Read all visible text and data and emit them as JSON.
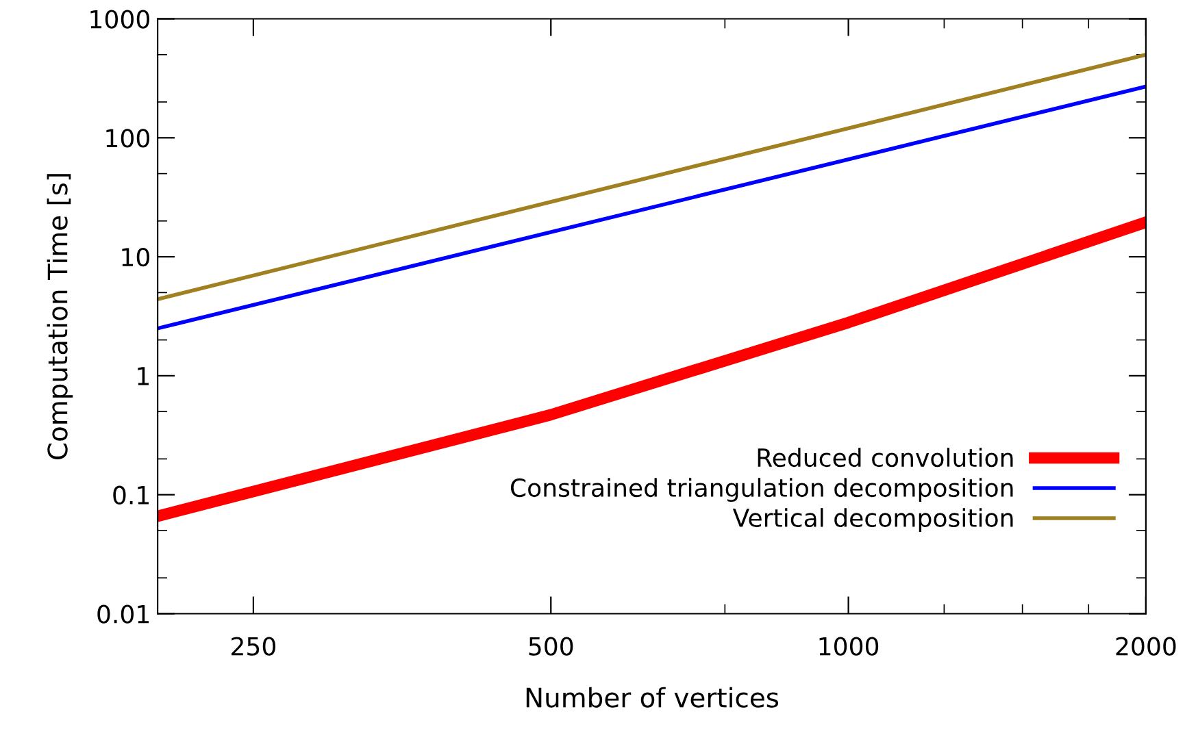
{
  "chart_data": {
    "type": "line",
    "xlabel": "Number of vertices",
    "ylabel": "Computation Time [s]",
    "log": "xy",
    "xlim": [
      200,
      2000
    ],
    "ylim": [
      0.01,
      1000
    ],
    "xticks": [
      250,
      500,
      {
        "value": 750,
        "label": null
      },
      1000,
      {
        "value": 1250,
        "label": null
      },
      {
        "value": 1500,
        "label": null
      },
      {
        "value": 1750,
        "label": null
      },
      2000
    ],
    "yticks": [
      0.01,
      {
        "value": 0.02,
        "label": null
      },
      {
        "value": 0.05,
        "label": null
      },
      0.1,
      {
        "value": 0.2,
        "label": null
      },
      {
        "value": 0.5,
        "label": null
      },
      1,
      {
        "value": 2,
        "label": null
      },
      {
        "value": 5,
        "label": null
      },
      10,
      {
        "value": 20,
        "label": null
      },
      {
        "value": 50,
        "label": null
      },
      100,
      {
        "value": 200,
        "label": null
      },
      {
        "value": 500,
        "label": null
      },
      1000
    ],
    "grid": false,
    "legend": "bottom right",
    "marker": "none",
    "line_style": "solid",
    "series": [
      {
        "name": "Reduced convolution",
        "color": "#ff0000",
        "x": [
          200,
          500,
          1000,
          2000
        ],
        "values": [
          0.066,
          0.47,
          2.8,
          19.5
        ]
      },
      {
        "name": "Constrained triangulation decomposition",
        "color": "#0000ff",
        "x": [
          200,
          2000
        ],
        "values": [
          2.5,
          270
        ]
      },
      {
        "name": "Vertical decomposition",
        "color": "#a08020",
        "x": [
          200,
          2000
        ],
        "values": [
          4.4,
          500
        ]
      }
    ]
  }
}
